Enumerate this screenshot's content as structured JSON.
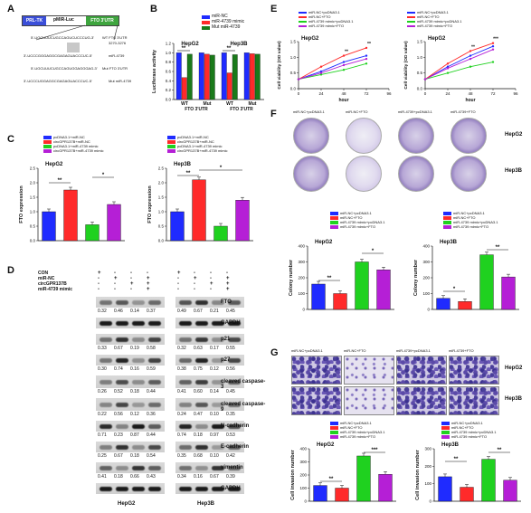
{
  "panels": {
    "A": "A",
    "B": "B",
    "C": "C",
    "D": "D",
    "E": "E",
    "F": "F",
    "G": "G"
  },
  "panelA": {
    "construct": {
      "prl_tk": "PRL-TK",
      "pmir_luc": "pMIR-Luc",
      "fto_utr": "FTO 3'UTR"
    },
    "sequences": [
      {
        "seq": "5'-UGCUUUCUGCCAGUCUCCCUG-3'",
        "label": "WT FTO 3'UTR"
      },
      {
        "seq": "3'-UCCCGGGAGGCGAGAGUACCCUC-5'",
        "label": "miR-4739"
      },
      {
        "seq": "5'-UGCUUUCUGCCAGUGGAGGGAG-3'",
        "label": "Mut FTO 3'UTR"
      },
      {
        "seq": "3'-UCCCUGGAGGCGAGAGUACCCUC-5'",
        "label": "Mut miR-4739"
      }
    ],
    "position": "3270-3276"
  },
  "panelB": {
    "legend": [
      "miR-NC",
      "miR-4739 mimic",
      "Mut miR-4739"
    ],
    "ylabel": "Luciferase activity",
    "yticks": [
      "0.0",
      "0.2",
      "0.4",
      "0.6",
      "0.8",
      "1.0",
      "1.2"
    ],
    "groups": [
      "HepG2",
      "Hep3B"
    ],
    "xticks": [
      "WT",
      "Mut",
      "WT",
      "Mut"
    ],
    "xgroup": [
      "FTO 3'UTR",
      "FTO 3'UTR"
    ],
    "sig": [
      "**",
      "**"
    ]
  },
  "panelC": {
    "legend": [
      "pcDNA3.1+miR-NC",
      "circGPR137B+miR-NC",
      "pcDNA3.1+miR-4739 mimic",
      "circGPR137B+miR-4739 mimic"
    ],
    "legendB": [
      "pcDNA3.1+miR-NC",
      "circGPR137B+miR-NC",
      "pcDNA3.1+miR-4739 mimic",
      "circGPR137B+miR-4739 mimic"
    ],
    "ylabel": "FTO expression",
    "yticks": [
      "0.0",
      "0.5",
      "1.0",
      "1.5",
      "2.0",
      "2.5"
    ],
    "titles": [
      "HepG2",
      "Hep3B"
    ],
    "sig": [
      "**",
      "*",
      "**",
      "*"
    ]
  },
  "panelD": {
    "rows": [
      "CON",
      "miR-NC",
      "circGPR137B",
      "miR-4739 mimic"
    ],
    "signs": [
      [
        "+",
        "-",
        "-",
        "-",
        "+",
        "-",
        "-",
        "-"
      ],
      [
        "-",
        "+",
        "-",
        "+",
        "-",
        "+",
        "-",
        "+"
      ],
      [
        "-",
        "-",
        "+",
        "+",
        "-",
        "-",
        "+",
        "+"
      ],
      [
        "-",
        "-",
        "-",
        "+",
        "-",
        "-",
        "-",
        "+"
      ]
    ],
    "proteins": [
      "FTO",
      "GAPDH",
      "p21",
      "p27",
      "cleaved caspase-3",
      "cleaved caspase-9",
      "N-cadherin",
      "E-cadherin",
      "vimentin",
      "GAPDH"
    ],
    "values": {
      "FTO": [
        [
          "0.32",
          "0.46",
          "0.14",
          "0.37"
        ],
        [
          "0.49",
          "0.67",
          "0.21",
          "0.45"
        ]
      ],
      "p21": [
        [
          "0.33",
          "0.67",
          "0.19",
          "0.58"
        ],
        [
          "0.32",
          "0.63",
          "0.17",
          "0.55"
        ]
      ],
      "p27": [
        [
          "0.30",
          "0.74",
          "0.16",
          "0.59"
        ],
        [
          "0.38",
          "0.75",
          "0.12",
          "0.56"
        ]
      ],
      "cc3": [
        [
          "0.26",
          "0.52",
          "0.18",
          "0.44"
        ],
        [
          "0.41",
          "0.60",
          "0.14",
          "0.45"
        ]
      ],
      "cc9": [
        [
          "0.22",
          "0.56",
          "0.12",
          "0.36"
        ],
        [
          "0.24",
          "0.47",
          "0.10",
          "0.35"
        ]
      ],
      "ncad": [
        [
          "0.71",
          "0.23",
          "0.87",
          "0.44"
        ],
        [
          "0.74",
          "0.18",
          "0.97",
          "0.53"
        ]
      ],
      "ecad": [
        [
          "0.25",
          "0.67",
          "0.18",
          "0.54"
        ],
        [
          "0.35",
          "0.68",
          "0.10",
          "0.42"
        ]
      ],
      "vim": [
        [
          "0.41",
          "0.18",
          "0.66",
          "0.43"
        ],
        [
          "0.34",
          "0.16",
          "0.67",
          "0.39"
        ]
      ]
    },
    "cells": [
      "HepG2",
      "Hep3B"
    ]
  },
  "panelE": {
    "legend": [
      "miR-NC+pcDNA3.1",
      "miR-NC+FTO",
      "miR-4739 mimic+pcDNA3.1",
      "miR-4739 mimic+FTO"
    ],
    "titles": [
      "HepG2",
      "HepG2"
    ],
    "ylabel": "Cell viability (OD value)",
    "xlabel": "hour",
    "xticks": [
      "0",
      "24",
      "48",
      "72",
      "96"
    ],
    "yticks": [
      "0.0",
      "0.5",
      "1.0",
      "1.5"
    ],
    "sig": [
      "**",
      "**",
      "**",
      "***"
    ]
  },
  "panelF": {
    "col_labels": [
      "miR-NC+pcDNA3.1",
      "miR-NC+FTO",
      "miR-4739+pcDNA3.1",
      "miR-4739+FTO"
    ],
    "row_labels": [
      "HepG2",
      "Hep3B"
    ],
    "legend": [
      "miR-NC+pcDNA3.1",
      "miR-NC+FTO",
      "miR-4739 mimic+pcDNA3.1",
      "miR-4739 mimic+FTO"
    ],
    "titles": [
      "HepG2",
      "Hep3B"
    ],
    "ylabel": "Colony number",
    "yticks_left": [
      "0",
      "100",
      "200",
      "300",
      "400"
    ],
    "yticks_right": [
      "0",
      "100",
      "200",
      "300",
      "400"
    ],
    "sig": [
      "**",
      "*",
      "*",
      "**"
    ]
  },
  "panelG": {
    "col_labels": [
      "miR-NC+pcDNA3.1",
      "miR-NC+FTO",
      "miR-4739+pcDNA3.1",
      "miR-4739+FTO"
    ],
    "row_labels": [
      "HepG2",
      "Hep3B"
    ],
    "legend": [
      "miR-NC+pcDNA3.1",
      "miR-NC+FTO",
      "miR-4739 mimic+pcDNA3.1",
      "miR-4739 mimic+FTO"
    ],
    "titles": [
      "HepG2",
      "Hep3B"
    ],
    "ylabel": "Cell invasion number",
    "yticks_left": [
      "0",
      "100",
      "200",
      "300",
      "400"
    ],
    "yticks_right": [
      "0",
      "100",
      "200",
      "300"
    ],
    "sig": [
      "**",
      "***",
      "**",
      "**"
    ]
  },
  "colors": {
    "blue": "#1f2bff",
    "red": "#ff2a2a",
    "green": "#1fd11f",
    "purple": "#b51fd6",
    "dgreen": "#1a7a1a"
  },
  "chart_data": [
    {
      "type": "bar",
      "categories": [
        "HepG2 WT",
        "HepG2 Mut",
        "Hep3B WT",
        "Hep3B Mut"
      ],
      "series": [
        {
          "name": "miR-NC",
          "values": [
            1.0,
            1.0,
            1.0,
            1.0
          ]
        },
        {
          "name": "miR-4739 mimic",
          "values": [
            0.47,
            0.97,
            0.57,
            0.98
          ]
        },
        {
          "name": "Mut miR-4739",
          "values": [
            0.97,
            0.95,
            0.96,
            0.97
          ]
        }
      ],
      "ylabel": "Luciferase activity",
      "ylim": [
        0,
        1.2
      ]
    },
    {
      "type": "bar",
      "title": "HepG2",
      "categories": [
        "pcDNA3.1+miR-NC",
        "circGPR137B+miR-NC",
        "pcDNA3.1+miR-4739 mimic",
        "circGPR137B+miR-4739 mimic"
      ],
      "values": [
        1.0,
        1.75,
        0.55,
        1.25
      ],
      "ylabel": "FTO expression",
      "ylim": [
        0,
        2.5
      ]
    },
    {
      "type": "bar",
      "title": "Hep3B",
      "categories": [
        "pcDNA3.1+miR-NC",
        "circGPR137B+miR-NC",
        "pcDNA3.1+miR-4739 mimic",
        "circGPR137B+miR-4739 mimic"
      ],
      "values": [
        1.0,
        2.1,
        0.5,
        1.4
      ],
      "ylabel": "FTO expression",
      "ylim": [
        0,
        2.5
      ]
    },
    {
      "type": "line",
      "title": "HepG2",
      "x": [
        0,
        24,
        48,
        72
      ],
      "series": [
        {
          "name": "miR-NC+pcDNA3.1",
          "values": [
            0.3,
            0.55,
            0.85,
            1.05
          ]
        },
        {
          "name": "miR-NC+FTO",
          "values": [
            0.3,
            0.7,
            1.05,
            1.3
          ]
        },
        {
          "name": "miR-4739 mimic+pcDNA3.1",
          "values": [
            0.3,
            0.45,
            0.6,
            0.8
          ]
        },
        {
          "name": "miR-4739 mimic+FTO",
          "values": [
            0.3,
            0.5,
            0.75,
            0.95
          ]
        }
      ],
      "xlabel": "hour",
      "ylabel": "Cell viability (OD value)",
      "ylim": [
        0,
        1.5
      ]
    },
    {
      "type": "line",
      "title": "HepG2",
      "x": [
        0,
        24,
        48,
        72
      ],
      "series": [
        {
          "name": "miR-NC+pcDNA3.1",
          "values": [
            0.3,
            0.7,
            1.05,
            1.35
          ]
        },
        {
          "name": "miR-NC+FTO",
          "values": [
            0.3,
            0.8,
            1.2,
            1.45
          ]
        },
        {
          "name": "miR-4739 mimic+pcDNA3.1",
          "values": [
            0.3,
            0.5,
            0.7,
            0.85
          ]
        },
        {
          "name": "miR-4739 mimic+FTO",
          "values": [
            0.3,
            0.65,
            0.95,
            1.25
          ]
        }
      ],
      "xlabel": "hour",
      "ylabel": "Cell viability (OD value)",
      "ylim": [
        0,
        1.5
      ]
    },
    {
      "type": "bar",
      "title": "HepG2",
      "categories": [
        "miR-NC+pcDNA3.1",
        "miR-NC+FTO",
        "miR-4739 mimic+pcDNA3.1",
        "miR-4739 mimic+FTO"
      ],
      "values": [
        160,
        100,
        300,
        250
      ],
      "ylabel": "Colony number",
      "ylim": [
        0,
        400
      ]
    },
    {
      "type": "bar",
      "title": "Hep3B",
      "categories": [
        "miR-NC+pcDNA3.1",
        "miR-NC+FTO",
        "miR-4739 mimic+pcDNA3.1",
        "miR-4739 mimic+FTO"
      ],
      "values": [
        70,
        50,
        345,
        205
      ],
      "ylabel": "Colony number",
      "ylim": [
        0,
        400
      ]
    },
    {
      "type": "bar",
      "title": "HepG2",
      "categories": [
        "miR-NC+pcDNA3.1",
        "miR-NC+FTO",
        "miR-4739 mimic+pcDNA3.1",
        "miR-4739 mimic+FTO"
      ],
      "values": [
        120,
        100,
        345,
        205
      ],
      "ylabel": "Cell invasion number",
      "ylim": [
        0,
        400
      ]
    },
    {
      "type": "bar",
      "title": "Hep3B",
      "categories": [
        "miR-NC+pcDNA3.1",
        "miR-NC+FTO",
        "miR-4739 mimic+pcDNA3.1",
        "miR-4739 mimic+FTO"
      ],
      "values": [
        140,
        80,
        240,
        120
      ],
      "ylabel": "Cell invasion number",
      "ylim": [
        0,
        300
      ]
    }
  ]
}
